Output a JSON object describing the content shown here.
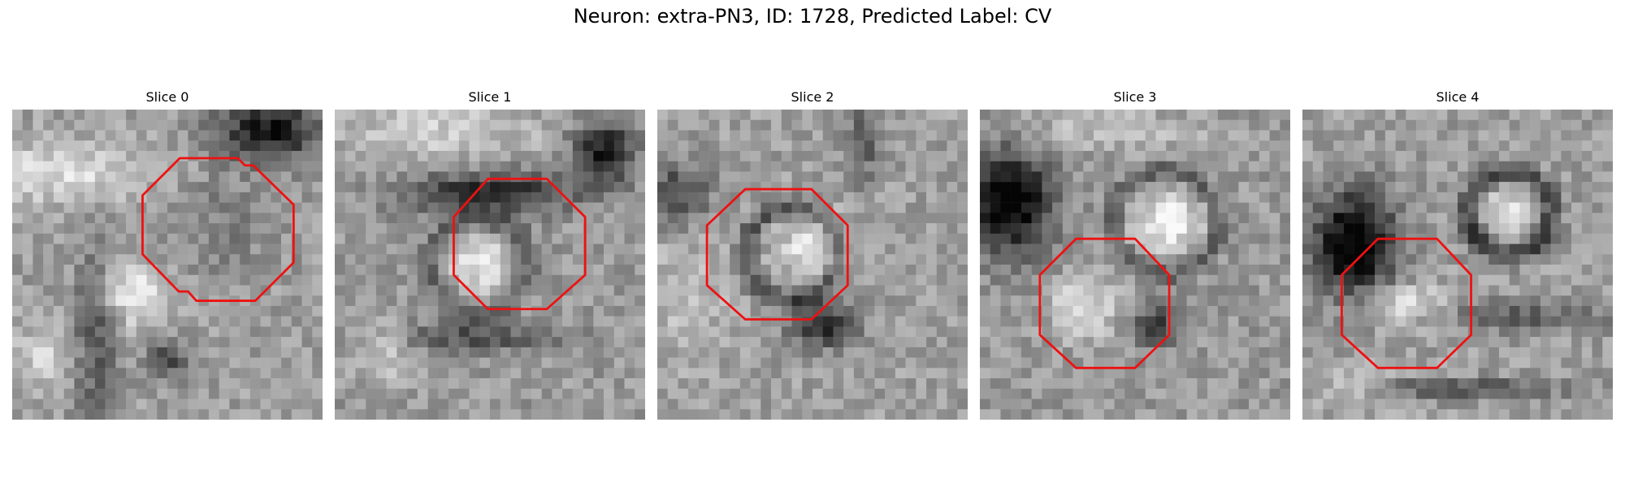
{
  "figure": {
    "title": "Neuron: extra-PN3, ID: 1728, Predicted Label: CV"
  },
  "panels": [
    {
      "title": "Slice 0"
    },
    {
      "title": "Slice 1"
    },
    {
      "title": "Slice 2"
    },
    {
      "title": "Slice 3"
    },
    {
      "title": "Slice 4"
    }
  ],
  "colors": {
    "outline": "#ee1111",
    "background": "#ffffff"
  }
}
